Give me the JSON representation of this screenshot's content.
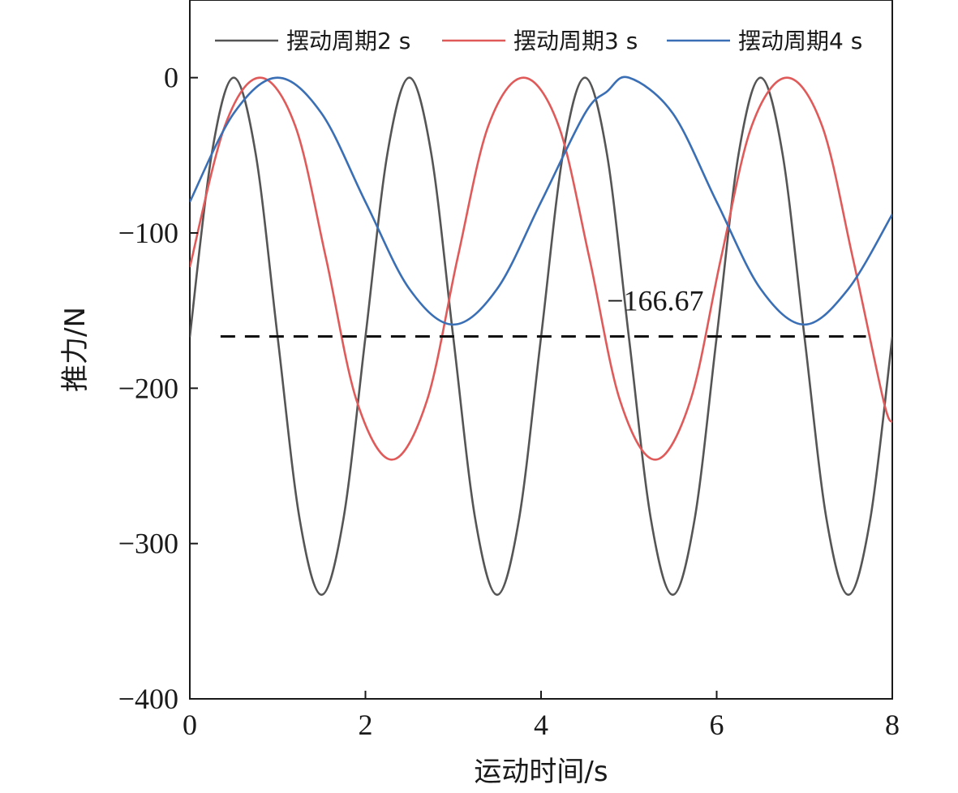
{
  "chart_data": {
    "type": "line",
    "xlabel": "运动时间/s",
    "ylabel": "推力/N",
    "xlim": [
      0,
      8
    ],
    "ylim": [
      -400,
      50
    ],
    "xticks": [
      0,
      2,
      4,
      6,
      8
    ],
    "yticks": [
      0,
      -100,
      -200,
      -300,
      -400
    ],
    "xtick_labels": [
      "0",
      "2",
      "4",
      "6",
      "8"
    ],
    "ytick_labels": [
      "0",
      "−100",
      "−200",
      "−300",
      "−400"
    ],
    "grid": false,
    "legend_position": "top",
    "series": [
      {
        "name": "摆动周期2 s",
        "color": "#555555",
        "x": [
          0,
          0.25,
          0.5,
          0.75,
          1.0,
          1.25,
          1.5,
          1.75,
          2.0,
          2.25,
          2.5,
          2.75,
          3.0,
          3.25,
          3.5,
          3.75,
          4.0,
          4.25,
          4.5,
          4.75,
          5.0,
          5.25,
          5.5,
          5.75,
          6.0,
          6.25,
          6.5,
          6.75,
          7.0,
          7.25,
          7.5,
          7.75,
          8.0
        ],
        "y": [
          -167,
          -49,
          0,
          -49,
          -167,
          -284,
          -333,
          -284,
          -167,
          -49,
          0,
          -49,
          -167,
          -284,
          -333,
          -284,
          -167,
          -49,
          0,
          -49,
          -167,
          -284,
          -333,
          -284,
          -167,
          -49,
          0,
          -49,
          -167,
          -284,
          -333,
          -284,
          -167
        ]
      },
      {
        "name": "摆动周期3 s",
        "color": "#e05a5a",
        "x": [
          0,
          0.4,
          0.8,
          1.2,
          1.55,
          1.9,
          2.3,
          2.7,
          3.05,
          3.4,
          3.8,
          4.2,
          4.55,
          4.9,
          5.3,
          5.7,
          6.05,
          6.4,
          6.8,
          7.2,
          7.55,
          7.9,
          8.0
        ],
        "y": [
          -122,
          -31,
          0,
          -31,
          -116,
          -208,
          -246,
          -208,
          -116,
          -31,
          0,
          -31,
          -116,
          -208,
          -246,
          -208,
          -116,
          -31,
          0,
          -31,
          -116,
          -208,
          -222
        ]
      },
      {
        "name": "摆动周期4 s",
        "color": "#3a6fb5",
        "x": [
          0,
          0.5,
          1.0,
          1.5,
          2.0,
          2.5,
          3.0,
          3.5,
          4.0,
          4.5,
          4.75,
          5.0,
          5.5,
          6.0,
          6.5,
          7.0,
          7.5,
          8.0
        ],
        "y": [
          -80,
          -23,
          0,
          -23,
          -80,
          -136,
          -159,
          -136,
          -80,
          -23,
          -9,
          0,
          -23,
          -80,
          -136,
          -159,
          -136,
          -88
        ]
      }
    ],
    "reference_line": {
      "y": -166.67,
      "x_start": 0.35,
      "x_end": 7.7,
      "style": "dashed",
      "color": "#111111"
    },
    "annotations": [
      {
        "text": "−166.67",
        "x": 4.75,
        "y": -150
      }
    ]
  }
}
